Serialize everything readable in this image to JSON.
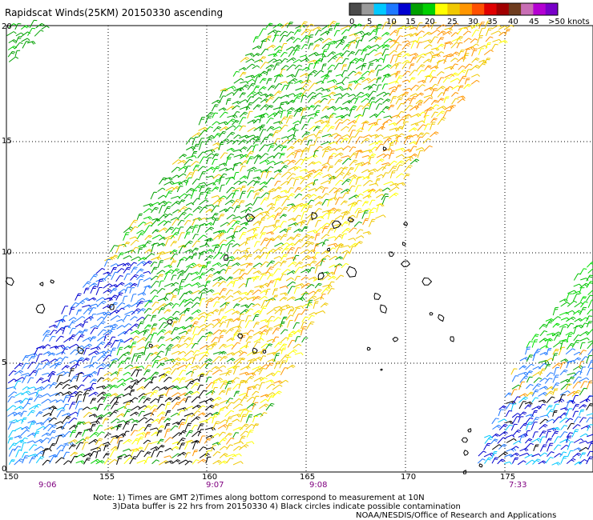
{
  "title": "Rapidscat Winds(25KM) 20150330 ascending",
  "legend": {
    "labels": [
      "0",
      "5",
      "10",
      "15",
      "20",
      "25",
      "30",
      "35",
      "40",
      "45",
      ">50 knots"
    ],
    "colors": [
      "#4a4a4a",
      "#9a9a9a",
      "#00c8ff",
      "#1e78ff",
      "#0000d0",
      "#00a000",
      "#00d000",
      "#ffff00",
      "#f0c800",
      "#ff9600",
      "#ff5000",
      "#e00000",
      "#a00000",
      "#6e3c1e",
      "#c86eb4",
      "#b400d2",
      "#7800c8"
    ]
  },
  "axes": {
    "lon_labels": [
      "150",
      "155",
      "160",
      "165",
      "170",
      "175"
    ],
    "lat_labels": [
      "20",
      "15",
      "10",
      "5",
      "0"
    ]
  },
  "pass_times": [
    "9:06",
    "9:07",
    "9:08",
    "7:33"
  ],
  "notes": {
    "line1": "Note: 1) Times are GMT 2)Times along bottom correspond to measurement at 10N",
    "line2": "3)Data buffer is 22 hrs from 20150330 4) Black circles indicate possible contamination",
    "line3": "NOAA/NESDIS/Office of Research and Applications"
  }
}
